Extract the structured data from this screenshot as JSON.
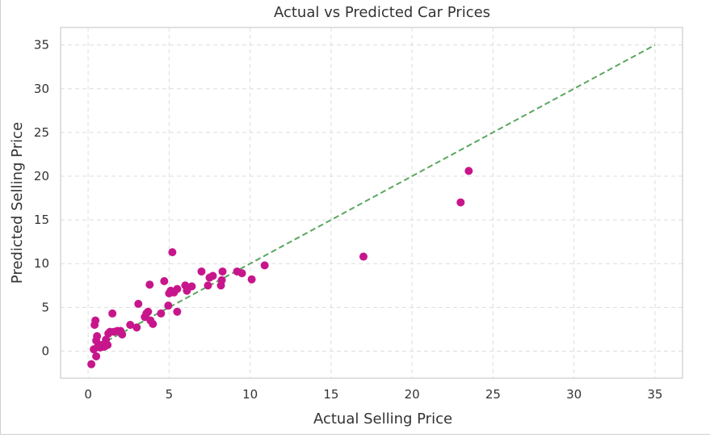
{
  "chart_data": {
    "type": "scatter",
    "title": "Actual vs Predicted Car Prices",
    "xlabel": "Actual Selling Price",
    "ylabel": "Predicted Selling Price",
    "xlim": [
      -1.7,
      36.7
    ],
    "ylim": [
      -3.1,
      37.0
    ],
    "xticks": [
      0,
      5,
      10,
      15,
      20,
      25,
      30,
      35
    ],
    "yticks": [
      0,
      5,
      10,
      15,
      20,
      25,
      30,
      35
    ],
    "grid": true,
    "point_color": "#c7168b",
    "reference_line": {
      "from": [
        0.2,
        0.2
      ],
      "to": [
        35,
        35
      ],
      "style": "dashed",
      "color": "#5aa65e"
    },
    "points": [
      {
        "x": 0.2,
        "y": -1.5
      },
      {
        "x": 0.35,
        "y": 0.2
      },
      {
        "x": 0.4,
        "y": 3.0
      },
      {
        "x": 0.45,
        "y": 3.5
      },
      {
        "x": 0.5,
        "y": -0.6
      },
      {
        "x": 0.5,
        "y": 1.2
      },
      {
        "x": 0.55,
        "y": 1.7
      },
      {
        "x": 0.6,
        "y": 0.5
      },
      {
        "x": 0.75,
        "y": 0.4
      },
      {
        "x": 0.85,
        "y": 0.7
      },
      {
        "x": 1.0,
        "y": 0.5
      },
      {
        "x": 1.1,
        "y": 1.3
      },
      {
        "x": 1.2,
        "y": 0.7
      },
      {
        "x": 1.25,
        "y": 2.0
      },
      {
        "x": 1.35,
        "y": 2.2
      },
      {
        "x": 1.5,
        "y": 4.3
      },
      {
        "x": 1.6,
        "y": 2.2
      },
      {
        "x": 1.8,
        "y": 2.3
      },
      {
        "x": 2.0,
        "y": 2.3
      },
      {
        "x": 2.1,
        "y": 1.9
      },
      {
        "x": 2.6,
        "y": 3.0
      },
      {
        "x": 3.0,
        "y": 2.7
      },
      {
        "x": 3.1,
        "y": 5.4
      },
      {
        "x": 3.5,
        "y": 3.9
      },
      {
        "x": 3.6,
        "y": 4.3
      },
      {
        "x": 3.7,
        "y": 4.5
      },
      {
        "x": 3.8,
        "y": 7.6
      },
      {
        "x": 3.85,
        "y": 3.5
      },
      {
        "x": 4.0,
        "y": 3.1
      },
      {
        "x": 4.5,
        "y": 4.3
      },
      {
        "x": 4.7,
        "y": 8.0
      },
      {
        "x": 4.95,
        "y": 5.2
      },
      {
        "x": 5.0,
        "y": 6.6
      },
      {
        "x": 5.1,
        "y": 6.9
      },
      {
        "x": 5.2,
        "y": 11.3
      },
      {
        "x": 5.3,
        "y": 6.7
      },
      {
        "x": 5.5,
        "y": 7.1
      },
      {
        "x": 5.5,
        "y": 4.5
      },
      {
        "x": 6.0,
        "y": 7.5
      },
      {
        "x": 6.1,
        "y": 6.9
      },
      {
        "x": 6.4,
        "y": 7.4
      },
      {
        "x": 7.0,
        "y": 9.1
      },
      {
        "x": 7.4,
        "y": 7.5
      },
      {
        "x": 7.5,
        "y": 8.4
      },
      {
        "x": 7.7,
        "y": 8.6
      },
      {
        "x": 8.2,
        "y": 7.5
      },
      {
        "x": 8.25,
        "y": 8.1
      },
      {
        "x": 8.3,
        "y": 9.1
      },
      {
        "x": 9.2,
        "y": 9.1
      },
      {
        "x": 9.5,
        "y": 8.9
      },
      {
        "x": 10.1,
        "y": 8.2
      },
      {
        "x": 10.9,
        "y": 9.8
      },
      {
        "x": 17.0,
        "y": 10.8
      },
      {
        "x": 23.0,
        "y": 17.0
      },
      {
        "x": 23.5,
        "y": 20.6
      }
    ]
  }
}
